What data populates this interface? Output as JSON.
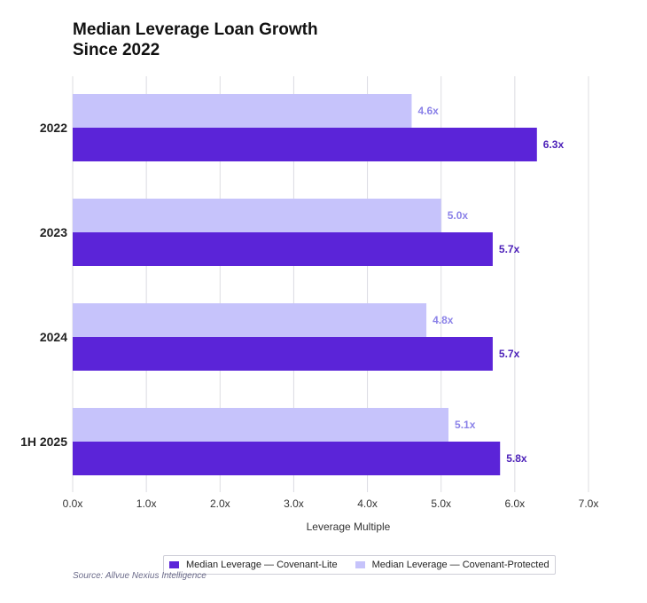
{
  "chart_data": {
    "type": "bar",
    "orientation": "horizontal",
    "title_lines": [
      "Median Leverage Loan Growth",
      "Since 2022"
    ],
    "categories": [
      "2022",
      "2023",
      "2024",
      "1H 2025"
    ],
    "series": [
      {
        "name": "Median Leverage — Covenant-Protected",
        "values": [
          4.6,
          5.0,
          4.8,
          5.1
        ],
        "labels": [
          "4.6x",
          "5.0x",
          "4.8x",
          "5.1x"
        ],
        "color": "#c6c3fb",
        "label_color": "#8b82e8"
      },
      {
        "name": "Median Leverage — Covenant-Lite",
        "values": [
          6.3,
          5.7,
          5.7,
          5.8
        ],
        "labels": [
          "6.3x",
          "5.7x",
          "5.7x",
          "5.8x"
        ],
        "color": "#5b24d8",
        "label_color": "#4b1fb8"
      }
    ],
    "xlabel": "Leverage Multiple",
    "xlim": [
      0,
      7
    ],
    "xticks": [
      0,
      1,
      2,
      3,
      4,
      5,
      6,
      7
    ],
    "xtick_labels": [
      "0.0x",
      "1.0x",
      "2.0x",
      "3.0x",
      "4.0x",
      "5.0x",
      "6.0x",
      "7.0x"
    ],
    "grid": true,
    "legend_position": "bottom-center",
    "source": "Source: Allvue Nexius Intelligence"
  }
}
